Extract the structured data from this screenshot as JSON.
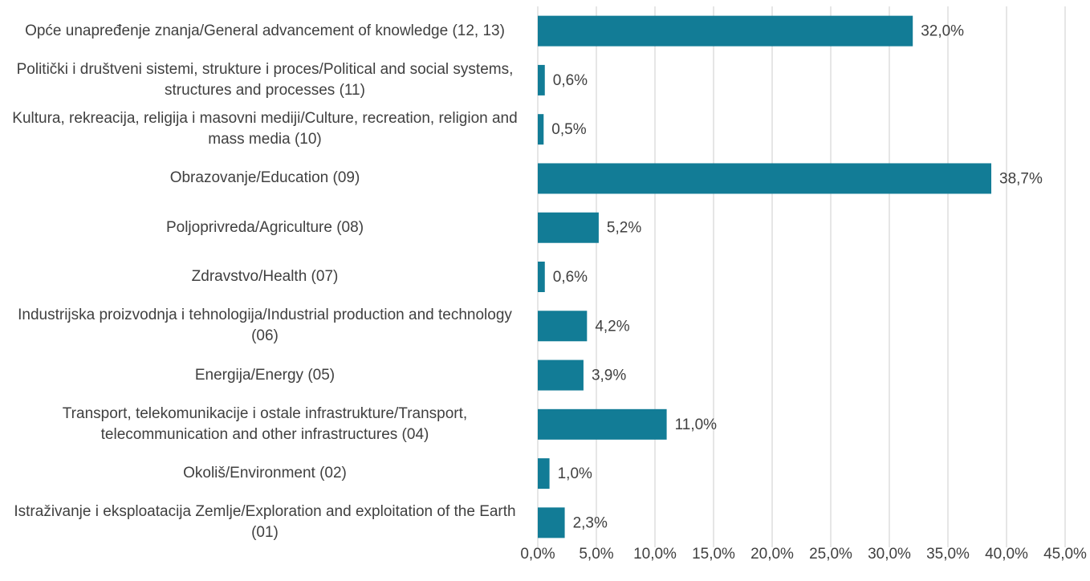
{
  "chart_data": {
    "type": "hbar",
    "categories": [
      "Opće unapređenje znanja/General advancement of knowledge (12, 13)",
      "Politički i društveni sistemi, strukture i proces/Political and social systems, structures and processes (11)",
      "Kultura, rekreacija, religija i masovni mediji/Culture, recreation, religion and mass media (10)",
      "Obrazovanje/Education (09)",
      "Poljoprivreda/Agriculture (08)",
      "Zdravstvo/Health (07)",
      "Industrijska proizvodnja i tehnologija/Industrial production and technology (06)",
      "Energija/Energy (05)",
      "Transport, telekomunikacije i ostale infrastrukture/Transport, telecommunication and other infrastructures  (04)",
      "Okoliš/Environment (02)",
      "Istraživanje i eksploatacija Zemlje/Exploration and exploitation of the Earth  (01)"
    ],
    "values": [
      32.0,
      0.6,
      0.5,
      38.7,
      5.2,
      0.6,
      4.2,
      3.9,
      11.0,
      1.0,
      2.3
    ],
    "value_labels": [
      "32,0%",
      "0,6%",
      "0,5%",
      "38,7%",
      "5,2%",
      "0,6%",
      "4,2%",
      "3,9%",
      "11,0%",
      "1,0%",
      "2,3%"
    ],
    "color": "#127c96",
    "xlim": [
      0,
      45
    ],
    "xticks": [
      {
        "value": 0,
        "label": "0,0%"
      },
      {
        "value": 5,
        "label": "5,0%"
      },
      {
        "value": 10,
        "label": "10,0%"
      },
      {
        "value": 15,
        "label": "15,0%"
      },
      {
        "value": 20,
        "label": "20,0%"
      },
      {
        "value": 25,
        "label": "25,0%"
      },
      {
        "value": 30,
        "label": "30,0%"
      },
      {
        "value": 35,
        "label": "35,0%"
      },
      {
        "value": 40,
        "label": "40,0%"
      },
      {
        "value": 45,
        "label": "45,0%"
      }
    ],
    "grid": true
  }
}
